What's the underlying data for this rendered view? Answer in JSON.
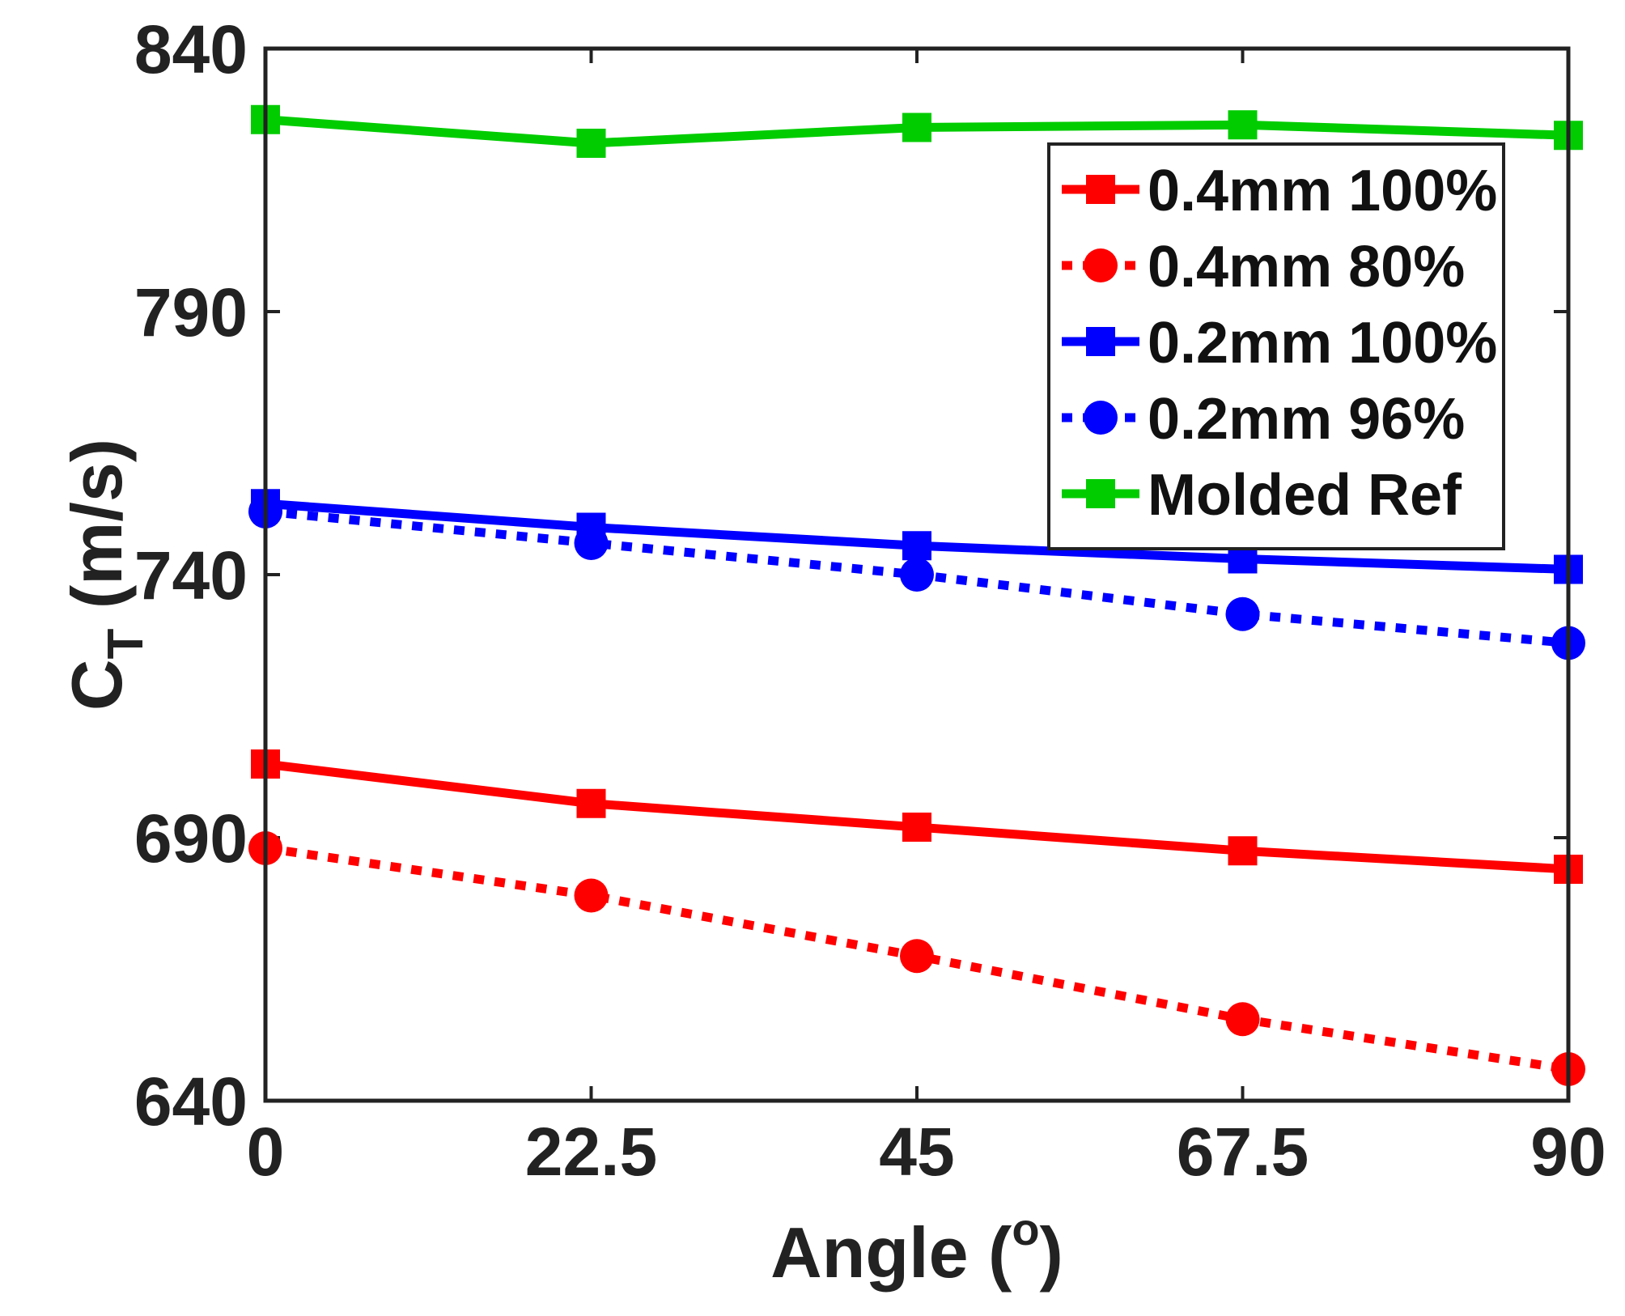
{
  "chart_data": {
    "type": "line",
    "xlabel": "Angle (",
    "xlabel_sup": "o",
    "xlabel_close": ")",
    "ylabel_main": "C",
    "ylabel_sub": "T",
    "ylabel_unit": " (m/s)",
    "x": [
      0,
      22.5,
      45,
      67.5,
      90
    ],
    "xticks": [
      "0",
      "22.5",
      "45",
      "67.5",
      "90"
    ],
    "yticks": [
      "640",
      "690",
      "740",
      "790",
      "840"
    ],
    "xlim": [
      0,
      90
    ],
    "ylim": [
      640,
      840
    ],
    "legend_position": "top-right",
    "series": [
      {
        "name": "0.4mm 100%",
        "color": "#ff0000",
        "marker": "square",
        "dash": "solid",
        "values": [
          704,
          696.5,
          692,
          687.5,
          684
        ]
      },
      {
        "name": "0.4mm 80%",
        "color": "#ff0000",
        "marker": "circle",
        "dash": "dotted",
        "values": [
          688,
          679,
          667.5,
          655.5,
          646
        ]
      },
      {
        "name": "0.2mm 100%",
        "color": "#0000ff",
        "marker": "square",
        "dash": "solid",
        "values": [
          753.5,
          749,
          745.5,
          743,
          741
        ]
      },
      {
        "name": "0.2mm 96%",
        "color": "#0000ff",
        "marker": "circle",
        "dash": "dotted",
        "values": [
          752,
          746,
          740,
          732.5,
          727
        ]
      },
      {
        "name": "Molded Ref",
        "color": "#00cc00",
        "marker": "square",
        "dash": "solid",
        "values": [
          826.5,
          822,
          825,
          825.5,
          823.5
        ]
      }
    ]
  }
}
